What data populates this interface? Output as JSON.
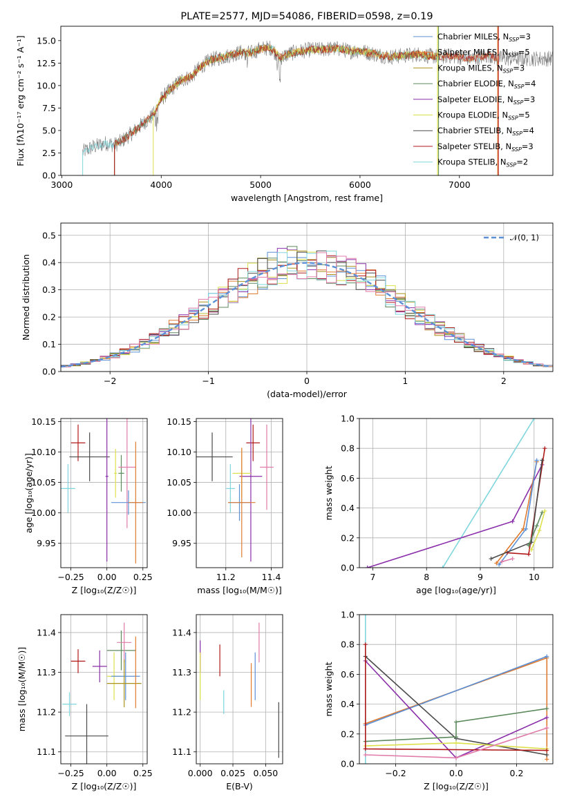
{
  "colors": {
    "Chabrier MILES": "#5b8fd6",
    "Salpeter MILES": "#e07a2e",
    "Kroupa MILES": "#a8921a",
    "Chabrier ELODIE": "#5d8a5d",
    "Salpeter ELODIE": "#8a2faa",
    "Kroupa ELODIE": "#dde04a",
    "Chabrier STELIB": "#4a4a4a",
    "Salpeter STELIB": "#b01818",
    "Kroupa STELIB": "#7fd6dc",
    "extra_pink": "#e07aa8",
    "extra_gray": "#7a7a7a"
  },
  "chart_data": [
    {
      "id": "spectrum",
      "type": "line",
      "title": "PLATE=2577, MJD=54086, FIBERID=0598, z=0.19",
      "xlabel": "wavelength [Angstrom, rest frame]",
      "ylabel": "Flux [f$_\\lambda$10$^{-17}$ erg cm$^{-2}$ s$^{-1}$ A$^{-1}$]",
      "ylabel_display": "Flux [fλ10⁻¹⁷ erg cm⁻² s⁻¹ A⁻¹]",
      "xlim": [
        2990,
        7940
      ],
      "ylim": [
        0,
        16.6
      ],
      "xticks": [
        3000,
        4000,
        5000,
        6000,
        7000
      ],
      "yticks": [
        0.0,
        2.5,
        5.0,
        7.5,
        10.0,
        12.5,
        15.0
      ],
      "ytick_labels": [
        "0.0",
        "2.5",
        "5.0",
        "7.5",
        "10.0",
        "12.5",
        "15.0"
      ],
      "grid": false,
      "legend_position": "right",
      "legend": [
        {
          "label": "Chabrier MILES, N",
          "sub": "SSP",
          "suffix": "=3",
          "color_key": "Chabrier MILES"
        },
        {
          "label": "Salpeter MILES, N",
          "sub": "SSP",
          "suffix": "=5",
          "color_key": "Salpeter MILES"
        },
        {
          "label": "Kroupa MILES, N",
          "sub": "SSP",
          "suffix": "=3",
          "color_key": "Kroupa MILES"
        },
        {
          "label": "Chabrier ELODIE, N",
          "sub": "SSP",
          "suffix": "=4",
          "color_key": "Chabrier ELODIE"
        },
        {
          "label": "Salpeter ELODIE, N",
          "sub": "SSP",
          "suffix": "=3",
          "color_key": "Salpeter ELODIE"
        },
        {
          "label": "Kroupa ELODIE, N",
          "sub": "SSP",
          "suffix": "=5",
          "color_key": "Kroupa ELODIE"
        },
        {
          "label": "Chabrier STELIB, N",
          "sub": "SSP",
          "suffix": "=4",
          "color_key": "Chabrier STELIB"
        },
        {
          "label": "Salpeter STELIB, N",
          "sub": "SSP",
          "suffix": "=3",
          "color_key": "Salpeter STELIB"
        },
        {
          "label": "Kroupa STELIB, N",
          "sub": "SSP",
          "suffix": "=2",
          "color_key": "Kroupa STELIB"
        }
      ],
      "continuum": [
        [
          3210,
          2.6
        ],
        [
          3300,
          3.1
        ],
        [
          3450,
          3.6
        ],
        [
          3530,
          3.4
        ],
        [
          3600,
          3.8
        ],
        [
          3680,
          4.5
        ],
        [
          3760,
          5.2
        ],
        [
          3840,
          6.0
        ],
        [
          3920,
          6.7
        ],
        [
          4000,
          8.5
        ],
        [
          4100,
          9.6
        ],
        [
          4200,
          10.6
        ],
        [
          4300,
          11.0
        ],
        [
          4400,
          12.1
        ],
        [
          4500,
          12.9
        ],
        [
          4600,
          13.1
        ],
        [
          4700,
          13.4
        ],
        [
          4800,
          13.7
        ],
        [
          4900,
          13.6
        ],
        [
          5000,
          14.1
        ],
        [
          5100,
          14.2
        ],
        [
          5200,
          13.1
        ],
        [
          5300,
          13.6
        ],
        [
          5400,
          13.8
        ],
        [
          5500,
          14.0
        ],
        [
          5600,
          14.0
        ],
        [
          5700,
          14.1
        ],
        [
          5800,
          14.1
        ],
        [
          5900,
          13.8
        ],
        [
          6000,
          13.9
        ],
        [
          6100,
          13.6
        ],
        [
          6200,
          13.4
        ],
        [
          6300,
          13.2
        ],
        [
          6400,
          13.3
        ],
        [
          6500,
          13.4
        ],
        [
          6600,
          13.5
        ],
        [
          6700,
          13.3
        ],
        [
          6800,
          13.2
        ],
        [
          6900,
          13.3
        ],
        [
          7000,
          13.2
        ],
        [
          7100,
          13.0
        ],
        [
          7200,
          13.1
        ],
        [
          7300,
          13.4
        ],
        [
          7380,
          13.0
        ]
      ],
      "observed_end": 7940
    },
    {
      "id": "residual-hist",
      "type": "histogram",
      "xlabel": "(data-model)/error",
      "ylabel": "Normed distribution",
      "xlim": [
        -2.5,
        2.5
      ],
      "ylim": [
        0,
        0.545
      ],
      "xticks": [
        -2,
        -1,
        0,
        1,
        2
      ],
      "xtick_labels": [
        "−2",
        "−1",
        "0",
        "1",
        "2"
      ],
      "yticks": [
        0.0,
        0.1,
        0.2,
        0.3,
        0.4,
        0.5
      ],
      "ytick_labels": [
        "0.0",
        "0.1",
        "0.2",
        "0.3",
        "0.4",
        "0.5"
      ],
      "grid": true,
      "legend_position": "top-right",
      "normal_curve": {
        "label": "𝒩(0, 1)",
        "mean": 0,
        "sigma": 1,
        "color": "#5b8fd6"
      },
      "bin_width": 0.1
    },
    {
      "id": "age-vs-Z",
      "type": "scatter",
      "xlabel": "Z [log₁₀(Z/Z☉)]",
      "ylabel": "age  [log₁₀(age/yr)]",
      "xlim": [
        -0.32,
        0.28
      ],
      "ylim": [
        9.91,
        10.155
      ],
      "xticks": [
        -0.25,
        0,
        0.25
      ],
      "xtick_labels": [
        "−0.25",
        "0.00",
        "0.25"
      ],
      "yticks": [
        9.95,
        10.0,
        10.05,
        10.1,
        10.15
      ],
      "ytick_labels": [
        "9.95",
        "10.00",
        "10.05",
        "10.10",
        "10.15"
      ],
      "grid": true,
      "points": [
        {
          "x": -0.2,
          "y": 10.115,
          "xerr": 0.05,
          "yerr": 0.03,
          "c": "Salpeter STELIB"
        },
        {
          "x": -0.12,
          "y": 10.092,
          "xerr": 0.14,
          "yerr": 0.04,
          "c": "Chabrier STELIB"
        },
        {
          "x": -0.27,
          "y": 10.04,
          "xerr": 0.05,
          "yerr": 0.04,
          "c": "Kroupa STELIB"
        },
        {
          "x": 0.0,
          "y": 10.06,
          "xerr": 0.01,
          "yerr": 0.14,
          "c": "Salpeter ELODIE"
        },
        {
          "x": 0.1,
          "y": 10.065,
          "xerr": 0.02,
          "yerr": 0.03,
          "c": "Chabrier ELODIE"
        },
        {
          "x": 0.06,
          "y": 10.065,
          "xerr": 0.01,
          "yerr": 0.04,
          "c": "Kroupa ELODIE"
        },
        {
          "x": 0.14,
          "y": 10.075,
          "xerr": 0.06,
          "yerr": 0.1,
          "c": "extra_pink"
        },
        {
          "x": 0.15,
          "y": 10.017,
          "xerr": 0.12,
          "yerr": 0.02,
          "c": "Chabrier MILES"
        },
        {
          "x": 0.2,
          "y": 10.017,
          "xerr": 0.05,
          "yerr": 0.1,
          "c": "Salpeter MILES"
        }
      ]
    },
    {
      "id": "age-vs-mass",
      "type": "scatter",
      "xlabel": "mass [log₁₀(M/M☉)]",
      "ylabel": "",
      "xlim": [
        11.07,
        11.45
      ],
      "ylim": [
        9.91,
        10.155
      ],
      "xticks": [
        11.2,
        11.4
      ],
      "xtick_labels": [
        "11.2",
        "11.4"
      ],
      "yticks": [
        9.95,
        10.0,
        10.05,
        10.1,
        10.15
      ],
      "ytick_labels": [
        "9.95",
        "10.00",
        "10.05",
        "10.10",
        "10.15"
      ],
      "grid": true,
      "points": [
        {
          "x": 11.14,
          "y": 10.092,
          "xerr": 0.09,
          "yerr": 0.04,
          "c": "Chabrier STELIB"
        },
        {
          "x": 11.32,
          "y": 10.115,
          "xerr": 0.03,
          "yerr": 0.03,
          "c": "Salpeter STELIB"
        },
        {
          "x": 11.22,
          "y": 10.04,
          "xerr": 0.02,
          "yerr": 0.04,
          "c": "Kroupa STELIB"
        },
        {
          "x": 11.31,
          "y": 10.06,
          "xerr": 0.05,
          "yerr": 0.14,
          "c": "Salpeter ELODIE"
        },
        {
          "x": 11.27,
          "y": 10.065,
          "xerr": 0.04,
          "yerr": 0.04,
          "c": "Kroupa ELODIE"
        },
        {
          "x": 11.38,
          "y": 10.075,
          "xerr": 0.03,
          "yerr": 0.07,
          "c": "extra_pink"
        },
        {
          "x": 11.26,
          "y": 10.017,
          "xerr": 0.05,
          "yerr": 0.03,
          "c": "Chabrier MILES"
        },
        {
          "x": 11.27,
          "y": 10.017,
          "xerr": 0.06,
          "yerr": 0.09,
          "c": "Salpeter MILES"
        }
      ]
    },
    {
      "id": "weight-vs-age",
      "type": "line",
      "xlabel": "age  [log₁₀(age/yr)]",
      "ylabel": "mass weight",
      "xlim": [
        6.75,
        10.35
      ],
      "ylim": [
        0,
        1.0
      ],
      "xticks": [
        7,
        8,
        9,
        10
      ],
      "xtick_labels": [
        "7",
        "8",
        "9",
        "10"
      ],
      "yticks": [
        0.0,
        0.2,
        0.4,
        0.6,
        0.8,
        1.0
      ],
      "ytick_labels": [
        "0.0",
        "0.2",
        "0.4",
        "0.6",
        "0.8",
        "1.0"
      ],
      "grid": true,
      "series": [
        {
          "c": "Kroupa STELIB",
          "x": [
            8.3,
            10.0
          ],
          "y": [
            0.0,
            1.0
          ]
        },
        {
          "c": "Salpeter ELODIE",
          "x": [
            6.9,
            9.6,
            10.15
          ],
          "y": [
            0.0,
            0.31,
            0.69
          ]
        },
        {
          "c": "Salpeter MILES",
          "x": [
            9.3,
            9.8,
            10.05
          ],
          "y": [
            0.03,
            0.26,
            0.71
          ]
        },
        {
          "c": "Chabrier MILES",
          "x": [
            9.35,
            9.85,
            10.05
          ],
          "y": [
            0.02,
            0.26,
            0.72
          ]
        },
        {
          "c": "Salpeter STELIB",
          "x": [
            9.5,
            9.9,
            10.2
          ],
          "y": [
            0.1,
            0.09,
            0.8
          ]
        },
        {
          "c": "Chabrier STELIB",
          "x": [
            9.2,
            9.95,
            10.15
          ],
          "y": [
            0.06,
            0.17,
            0.72
          ]
        },
        {
          "c": "Chabrier ELODIE",
          "x": [
            9.9,
            10.05,
            10.15
          ],
          "y": [
            0.15,
            0.28,
            0.37
          ]
        },
        {
          "c": "Kroupa ELODIE",
          "x": [
            9.95,
            10.1,
            10.2
          ],
          "y": [
            0.12,
            0.25,
            0.38
          ]
        },
        {
          "c": "extra_pink",
          "x": [
            9.4,
            9.6
          ],
          "y": [
            0.04,
            0.06
          ]
        }
      ]
    },
    {
      "id": "mass-vs-Z",
      "type": "scatter",
      "xlabel": "Z [log₁₀(Z/Z☉)]",
      "ylabel": "mass [log₁₀(M/M☉)]",
      "xlim": [
        -0.32,
        0.28
      ],
      "ylim": [
        11.07,
        11.445
      ],
      "xticks": [
        -0.25,
        0,
        0.25
      ],
      "xtick_labels": [
        "−0.25",
        "0.00",
        "0.25"
      ],
      "yticks": [
        11.1,
        11.2,
        11.3,
        11.4
      ],
      "ytick_labels": [
        "11.1",
        "11.2",
        "11.3",
        "11.4"
      ],
      "grid": true,
      "points": [
        {
          "x": -0.2,
          "y": 11.328,
          "xerr": 0.05,
          "yerr": 0.03,
          "c": "Salpeter STELIB"
        },
        {
          "x": -0.26,
          "y": 11.22,
          "xerr": 0.05,
          "yerr": 0.03,
          "c": "Kroupa STELIB"
        },
        {
          "x": -0.14,
          "y": 11.14,
          "xerr": 0.15,
          "yerr": 0.08,
          "c": "Chabrier STELIB"
        },
        {
          "x": -0.05,
          "y": 11.315,
          "xerr": 0.05,
          "yerr": 0.04,
          "c": "Salpeter ELODIE"
        },
        {
          "x": 0.1,
          "y": 11.355,
          "xerr": 0.1,
          "yerr": 0.05,
          "c": "Chabrier ELODIE"
        },
        {
          "x": 0.12,
          "y": 11.375,
          "xerr": 0.05,
          "yerr": 0.05,
          "c": "extra_pink"
        },
        {
          "x": 0.05,
          "y": 11.29,
          "xerr": 0.05,
          "yerr": 0.06,
          "c": "Kroupa ELODIE"
        },
        {
          "x": 0.13,
          "y": 11.29,
          "xerr": 0.1,
          "yerr": 0.06,
          "c": "Chabrier MILES"
        },
        {
          "x": 0.12,
          "y": 11.272,
          "xerr": 0.12,
          "yerr": 0.06,
          "c": "Kroupa MILES"
        },
        {
          "x": 0.2,
          "y": 11.3,
          "xerr": 0.0,
          "yerr": 0.09,
          "c": "Salpeter MILES"
        }
      ]
    },
    {
      "id": "mass-vs-ebv",
      "type": "scatter",
      "xlabel": "E(B-V)",
      "ylabel": "",
      "xlim": [
        -0.003,
        0.063
      ],
      "ylim": [
        11.07,
        11.445
      ],
      "xticks": [
        0.0,
        0.025,
        0.05
      ],
      "xtick_labels": [
        "0.000",
        "0.025",
        "0.050"
      ],
      "yticks": [
        11.1,
        11.2,
        11.3,
        11.4
      ],
      "ytick_labels": [
        "11.1",
        "11.2",
        "11.3",
        "11.4"
      ],
      "grid": true,
      "points": [
        {
          "x": 0.0,
          "y": 11.34,
          "xerr": 0,
          "yerr": 0.04,
          "c": "Salpeter ELODIE"
        },
        {
          "x": 0.0,
          "y": 11.29,
          "xerr": 0,
          "yerr": 0.06,
          "c": "Kroupa ELODIE"
        },
        {
          "x": 0.015,
          "y": 11.33,
          "xerr": 0,
          "yerr": 0.04,
          "c": "Salpeter STELIB"
        },
        {
          "x": 0.018,
          "y": 11.225,
          "xerr": 0,
          "yerr": 0.03,
          "c": "Kroupa STELIB"
        },
        {
          "x": 0.039,
          "y": 11.268,
          "xerr": 0,
          "yerr": 0.055,
          "c": "Salpeter MILES"
        },
        {
          "x": 0.042,
          "y": 11.29,
          "xerr": 0,
          "yerr": 0.06,
          "c": "Chabrier MILES"
        },
        {
          "x": 0.045,
          "y": 11.375,
          "xerr": 0,
          "yerr": 0.05,
          "c": "extra_pink"
        },
        {
          "x": 0.06,
          "y": 11.155,
          "xerr": 0,
          "yerr": 0.07,
          "c": "Chabrier STELIB"
        }
      ]
    },
    {
      "id": "weight-vs-Z",
      "type": "line",
      "xlabel": "Z [log₁₀(Z/Z☉)]",
      "ylabel": "mass weight",
      "xlim": [
        -0.32,
        0.32
      ],
      "ylim": [
        0,
        1.0
      ],
      "xticks": [
        -0.2,
        0.0,
        0.2
      ],
      "xtick_labels": [
        "−0.2",
        "0.0",
        "0.2"
      ],
      "yticks": [
        0.0,
        0.2,
        0.4,
        0.6,
        0.8,
        1.0
      ],
      "ytick_labels": [
        "0.0",
        "0.2",
        "0.4",
        "0.6",
        "0.8",
        "1.0"
      ],
      "grid": true,
      "series": [
        {
          "c": "Kroupa STELIB",
          "x": [
            -0.3,
            -0.3
          ],
          "y": [
            0.0,
            1.0
          ]
        },
        {
          "c": "Salpeter MILES",
          "x": [
            -0.3,
            0.3,
            0.3
          ],
          "y": [
            0.27,
            0.71,
            0.03
          ]
        },
        {
          "c": "Chabrier MILES",
          "x": [
            -0.3,
            0.3
          ],
          "y": [
            0.26,
            0.72
          ]
        },
        {
          "c": "Salpeter ELODIE",
          "x": [
            -0.3,
            0.0,
            0.3
          ],
          "y": [
            0.69,
            0.04,
            0.31
          ]
        },
        {
          "c": "Chabrier STELIB",
          "x": [
            -0.3,
            0.0,
            0.3
          ],
          "y": [
            0.72,
            0.17,
            0.06
          ]
        },
        {
          "c": "Chabrier ELODIE",
          "x": [
            -0.3,
            0.0,
            0.0,
            0.3
          ],
          "y": [
            0.15,
            0.18,
            0.28,
            0.37
          ]
        },
        {
          "c": "Kroupa ELODIE",
          "x": [
            -0.3,
            0.0,
            0.3
          ],
          "y": [
            0.12,
            0.14,
            0.1
          ]
        },
        {
          "c": "Salpeter STELIB",
          "x": [
            -0.3,
            -0.3,
            0.3
          ],
          "y": [
            0.8,
            0.1,
            0.09
          ]
        },
        {
          "c": "extra_pink",
          "x": [
            -0.3,
            0.0,
            0.3
          ],
          "y": [
            0.06,
            0.04,
            0.24
          ]
        }
      ]
    }
  ]
}
